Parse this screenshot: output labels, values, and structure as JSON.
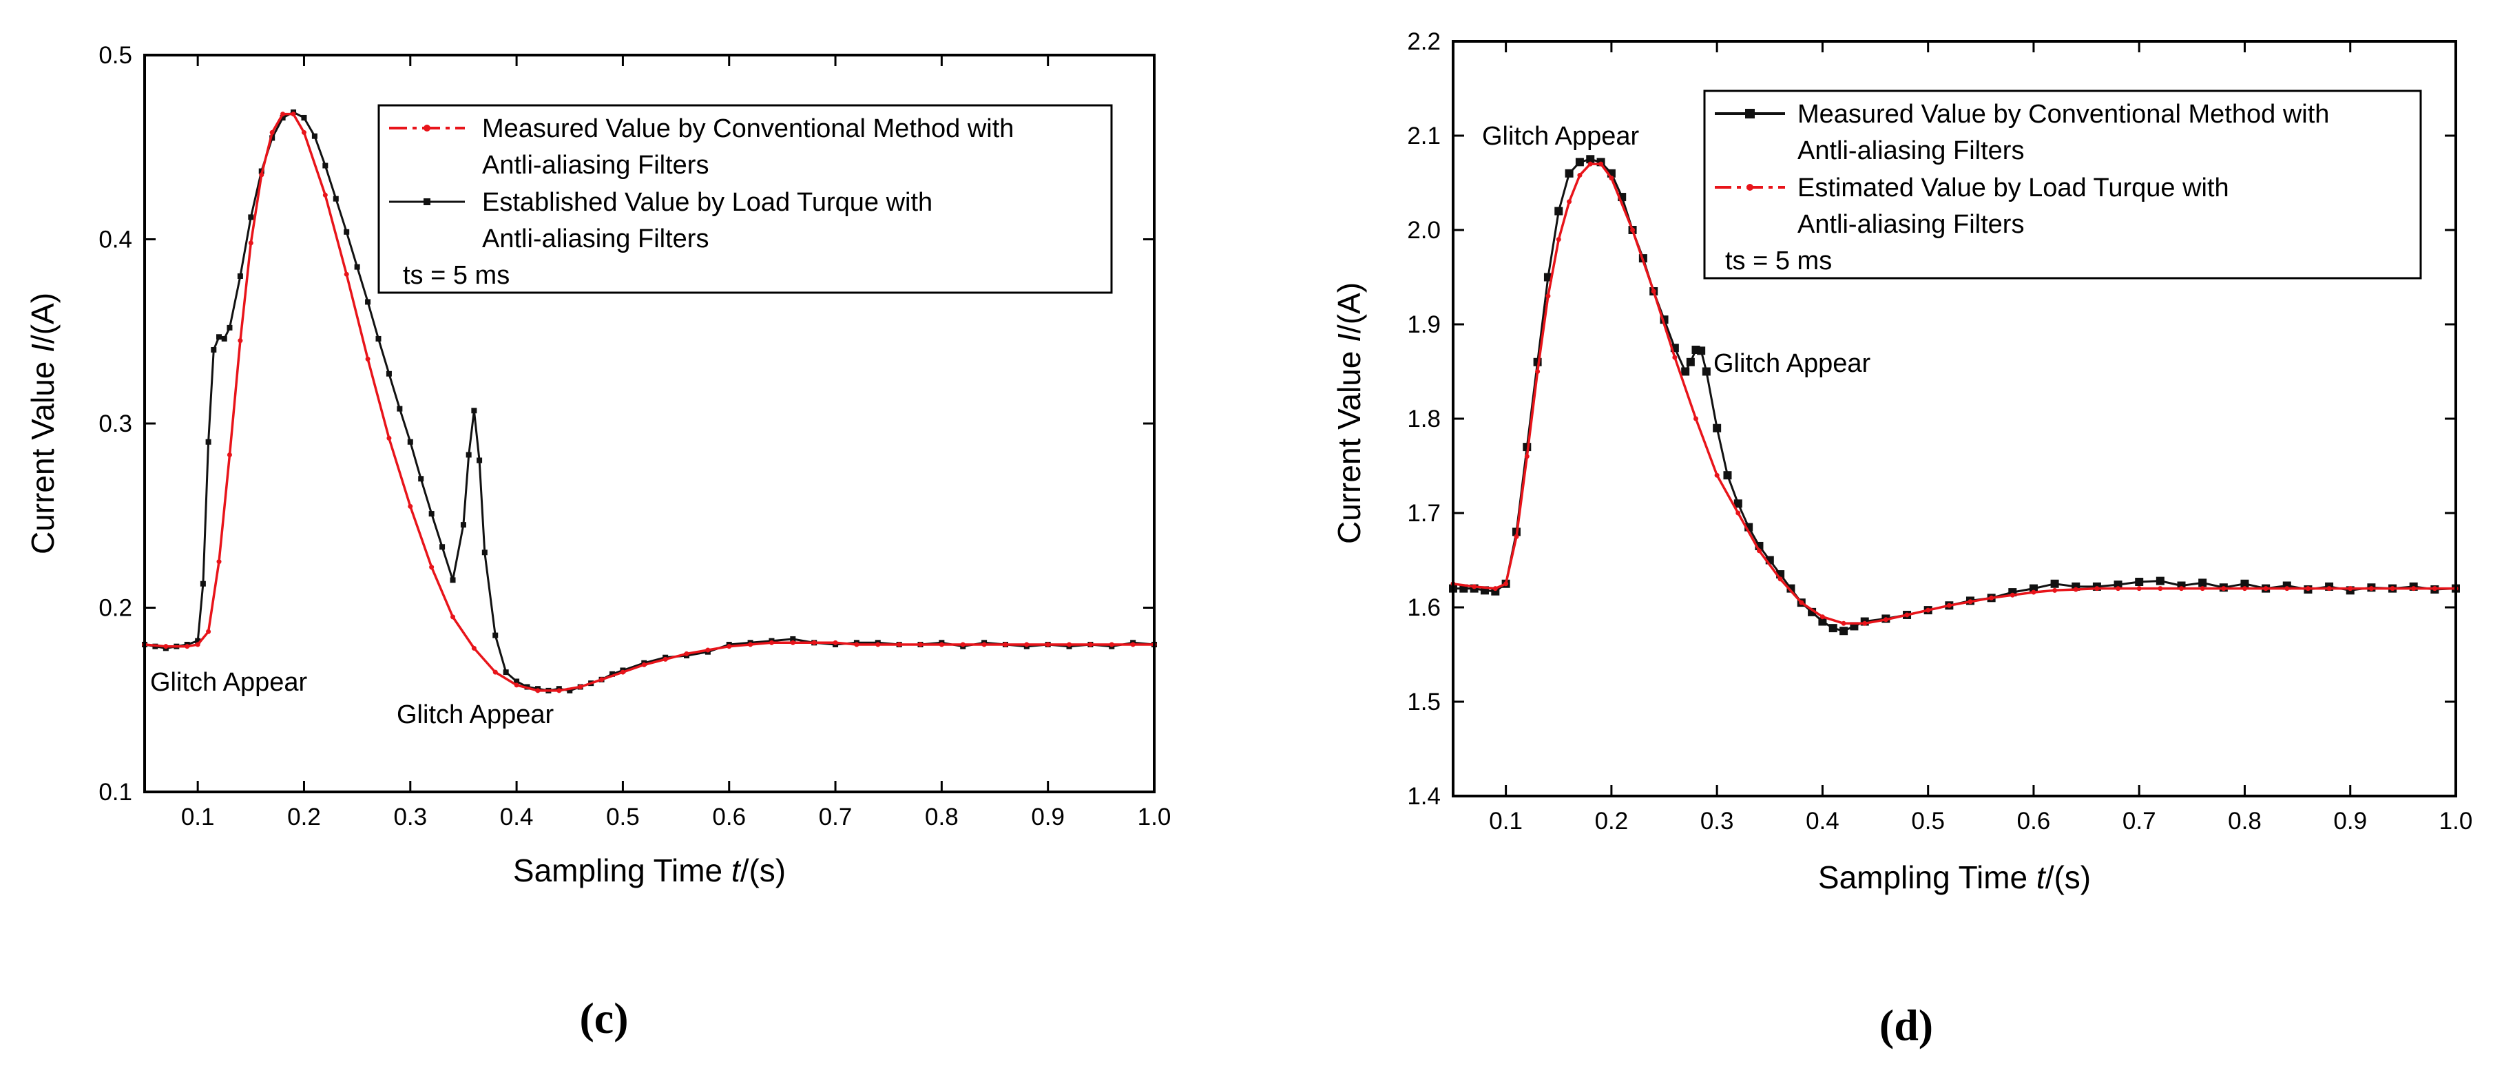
{
  "chart_data": [
    {
      "type": "line",
      "panel_label": "(c)",
      "xlabel": {
        "prefix": "Sampling Time ",
        "var": "t",
        "suffix": "/(s)"
      },
      "ylabel": {
        "prefix": "Current Value ",
        "var": "I",
        "suffix": "/(A)"
      },
      "xlim": [
        0.05,
        1.0
      ],
      "ylim": [
        0.1,
        0.5
      ],
      "xticks": [
        0.1,
        0.2,
        0.3,
        0.4,
        0.5,
        0.6,
        0.7,
        0.8,
        0.9,
        1.0
      ],
      "xtick_labels": [
        "0.1",
        "0.2",
        "0.3",
        "0.4",
        "0.5",
        "0.6",
        "0.7",
        "0.8",
        "0.9",
        "1.0"
      ],
      "yticks": [
        0.1,
        0.2,
        0.3,
        0.4,
        0.5
      ],
      "ytick_labels": [
        "0.1",
        "0.2",
        "0.3",
        "0.4",
        "0.5"
      ],
      "legend": {
        "position": "top-right",
        "entries": [
          {
            "series": 0,
            "lines": [
              "Measured Value by Conventional Method with",
              "Antli-aliasing Filters"
            ]
          },
          {
            "series": 1,
            "lines": [
              "Established Value by  Load Turque with",
              "Antli-aliasing Filters"
            ]
          }
        ],
        "note": "ts = 5 ms"
      },
      "annotations": [
        {
          "text": "Glitch Appear",
          "x": 0.11,
          "y": 0.158
        },
        {
          "text": "Glitch Appear",
          "x": 0.36,
          "y": 0.14
        }
      ],
      "series": [
        {
          "name": "Measured Value by Conventional Method with Antli-aliasing Filters",
          "color": "#e8141a",
          "marker": "dot",
          "x": [
            0.05,
            0.07,
            0.09,
            0.1,
            0.11,
            0.12,
            0.13,
            0.14,
            0.15,
            0.16,
            0.17,
            0.18,
            0.19,
            0.2,
            0.22,
            0.24,
            0.26,
            0.28,
            0.3,
            0.32,
            0.34,
            0.36,
            0.38,
            0.4,
            0.42,
            0.44,
            0.46,
            0.48,
            0.5,
            0.52,
            0.54,
            0.56,
            0.58,
            0.6,
            0.62,
            0.64,
            0.66,
            0.68,
            0.7,
            0.72,
            0.74,
            0.76,
            0.78,
            0.8,
            0.82,
            0.84,
            0.86,
            0.88,
            0.9,
            0.92,
            0.94,
            0.96,
            0.98,
            1.0
          ],
          "y": [
            0.18,
            0.179,
            0.179,
            0.18,
            0.187,
            0.225,
            0.283,
            0.345,
            0.398,
            0.435,
            0.458,
            0.468,
            0.468,
            0.458,
            0.424,
            0.381,
            0.335,
            0.292,
            0.255,
            0.222,
            0.195,
            0.178,
            0.165,
            0.158,
            0.155,
            0.155,
            0.157,
            0.161,
            0.165,
            0.169,
            0.172,
            0.175,
            0.177,
            0.179,
            0.18,
            0.181,
            0.181,
            0.181,
            0.181,
            0.18,
            0.18,
            0.18,
            0.18,
            0.18,
            0.18,
            0.18,
            0.18,
            0.18,
            0.18,
            0.18,
            0.18,
            0.18,
            0.18,
            0.18
          ]
        },
        {
          "name": "Established Value by  Load Turque with Antli-aliasing Filters",
          "color": "#111111",
          "marker": "square",
          "x": [
            0.05,
            0.06,
            0.07,
            0.08,
            0.09,
            0.1,
            0.105,
            0.11,
            0.115,
            0.12,
            0.125,
            0.13,
            0.14,
            0.15,
            0.16,
            0.17,
            0.18,
            0.19,
            0.2,
            0.21,
            0.22,
            0.23,
            0.24,
            0.25,
            0.26,
            0.27,
            0.28,
            0.29,
            0.3,
            0.31,
            0.32,
            0.33,
            0.34,
            0.35,
            0.355,
            0.36,
            0.365,
            0.37,
            0.38,
            0.39,
            0.4,
            0.41,
            0.42,
            0.43,
            0.44,
            0.45,
            0.46,
            0.47,
            0.48,
            0.49,
            0.5,
            0.52,
            0.54,
            0.56,
            0.58,
            0.6,
            0.62,
            0.64,
            0.66,
            0.68,
            0.7,
            0.72,
            0.74,
            0.76,
            0.78,
            0.8,
            0.82,
            0.84,
            0.86,
            0.88,
            0.9,
            0.92,
            0.94,
            0.96,
            0.98,
            1.0
          ],
          "y": [
            0.18,
            0.179,
            0.178,
            0.179,
            0.18,
            0.182,
            0.213,
            0.29,
            0.34,
            0.347,
            0.346,
            0.352,
            0.38,
            0.412,
            0.437,
            0.455,
            0.466,
            0.469,
            0.466,
            0.456,
            0.44,
            0.422,
            0.404,
            0.385,
            0.366,
            0.346,
            0.327,
            0.308,
            0.29,
            0.27,
            0.251,
            0.233,
            0.215,
            0.245,
            0.283,
            0.307,
            0.28,
            0.23,
            0.185,
            0.165,
            0.16,
            0.157,
            0.156,
            0.155,
            0.156,
            0.155,
            0.157,
            0.159,
            0.161,
            0.164,
            0.166,
            0.17,
            0.173,
            0.174,
            0.176,
            0.18,
            0.181,
            0.182,
            0.183,
            0.181,
            0.18,
            0.181,
            0.181,
            0.18,
            0.18,
            0.181,
            0.179,
            0.181,
            0.18,
            0.179,
            0.18,
            0.179,
            0.18,
            0.179,
            0.181,
            0.18
          ]
        }
      ]
    },
    {
      "type": "line",
      "panel_label": "(d)",
      "xlabel": {
        "prefix": "Sampling Time ",
        "var": "t",
        "suffix": "/(s)"
      },
      "ylabel": {
        "prefix": "Current Value ",
        "var": "I",
        "suffix": "/(A)"
      },
      "xlim": [
        0.05,
        1.0
      ],
      "ylim": [
        1.4,
        2.2
      ],
      "xticks": [
        0.1,
        0.2,
        0.3,
        0.4,
        0.5,
        0.6,
        0.7,
        0.8,
        0.9,
        1.0
      ],
      "xtick_labels": [
        "0.1",
        "0.2",
        "0.3",
        "0.4",
        "0.5",
        "0.6",
        "0.7",
        "0.8",
        "0.9",
        "1.0"
      ],
      "yticks": [
        1.4,
        1.5,
        1.6,
        1.7,
        1.8,
        1.9,
        2.0,
        2.1,
        2.2
      ],
      "ytick_labels": [
        "1.4",
        "1.5",
        "1.6",
        "1.7",
        "1.8",
        "1.9",
        "2.0",
        "2.1",
        "2.2"
      ],
      "legend": {
        "position": "top-right",
        "entries": [
          {
            "series": 0,
            "lines": [
              "Measured Value by Conventional Method with",
              "Antli-aliasing Filters"
            ]
          },
          {
            "series": 1,
            "lines": [
              "Estimated Value by Load Turque with",
              "Antli-aliasing Filters"
            ]
          }
        ],
        "note": "ts = 5 ms"
      },
      "annotations": [
        {
          "text": "Glitch Appear",
          "x": 0.18,
          "y": 2.09
        },
        {
          "text": "Glitch Appear",
          "x": 0.29,
          "y": 1.84
        }
      ],
      "series": [
        {
          "name": "Measured Value by Conventional Method with Antli-aliasing Filters",
          "color": "#111111",
          "marker": "square",
          "x": [
            0.05,
            0.06,
            0.07,
            0.08,
            0.09,
            0.1,
            0.11,
            0.12,
            0.13,
            0.14,
            0.15,
            0.16,
            0.17,
            0.18,
            0.19,
            0.2,
            0.21,
            0.22,
            0.23,
            0.24,
            0.25,
            0.26,
            0.27,
            0.275,
            0.28,
            0.285,
            0.29,
            0.3,
            0.31,
            0.32,
            0.33,
            0.34,
            0.35,
            0.36,
            0.37,
            0.38,
            0.39,
            0.4,
            0.41,
            0.42,
            0.43,
            0.44,
            0.46,
            0.48,
            0.5,
            0.52,
            0.54,
            0.56,
            0.58,
            0.6,
            0.62,
            0.64,
            0.66,
            0.68,
            0.7,
            0.72,
            0.74,
            0.76,
            0.78,
            0.8,
            0.82,
            0.84,
            0.86,
            0.88,
            0.9,
            0.92,
            0.94,
            0.96,
            0.98,
            1.0
          ],
          "y": [
            1.62,
            1.62,
            1.62,
            1.618,
            1.617,
            1.625,
            1.68,
            1.77,
            1.86,
            1.95,
            2.02,
            2.06,
            2.072,
            2.075,
            2.072,
            2.06,
            2.035,
            2.0,
            1.97,
            1.935,
            1.905,
            1.875,
            1.85,
            1.86,
            1.873,
            1.872,
            1.85,
            1.79,
            1.74,
            1.71,
            1.685,
            1.665,
            1.65,
            1.635,
            1.62,
            1.605,
            1.595,
            1.585,
            1.578,
            1.575,
            1.58,
            1.585,
            1.588,
            1.592,
            1.597,
            1.602,
            1.607,
            1.61,
            1.616,
            1.62,
            1.625,
            1.622,
            1.622,
            1.624,
            1.627,
            1.628,
            1.623,
            1.626,
            1.621,
            1.625,
            1.62,
            1.623,
            1.619,
            1.622,
            1.618,
            1.621,
            1.62,
            1.622,
            1.619,
            1.62
          ]
        },
        {
          "name": "Estimated Value by Load Turque with Antli-aliasing Filters",
          "color": "#e8141a",
          "marker": "dot",
          "x": [
            0.05,
            0.07,
            0.09,
            0.1,
            0.11,
            0.12,
            0.13,
            0.14,
            0.15,
            0.16,
            0.17,
            0.18,
            0.19,
            0.2,
            0.22,
            0.24,
            0.26,
            0.28,
            0.3,
            0.32,
            0.34,
            0.36,
            0.38,
            0.4,
            0.42,
            0.44,
            0.46,
            0.48,
            0.5,
            0.52,
            0.54,
            0.56,
            0.58,
            0.6,
            0.62,
            0.64,
            0.66,
            0.68,
            0.7,
            0.72,
            0.74,
            0.76,
            0.78,
            0.8,
            0.82,
            0.84,
            0.86,
            0.88,
            0.9,
            0.92,
            0.94,
            0.96,
            0.98,
            1.0
          ],
          "y": [
            1.625,
            1.622,
            1.62,
            1.625,
            1.675,
            1.76,
            1.85,
            1.93,
            1.99,
            2.03,
            2.058,
            2.07,
            2.07,
            2.055,
            2.0,
            1.935,
            1.865,
            1.8,
            1.74,
            1.7,
            1.66,
            1.63,
            1.605,
            1.59,
            1.583,
            1.583,
            1.587,
            1.592,
            1.597,
            1.602,
            1.606,
            1.61,
            1.613,
            1.616,
            1.618,
            1.619,
            1.62,
            1.62,
            1.62,
            1.62,
            1.62,
            1.62,
            1.62,
            1.62,
            1.62,
            1.62,
            1.62,
            1.62,
            1.62,
            1.62,
            1.62,
            1.62,
            1.62,
            1.62
          ]
        }
      ]
    }
  ]
}
